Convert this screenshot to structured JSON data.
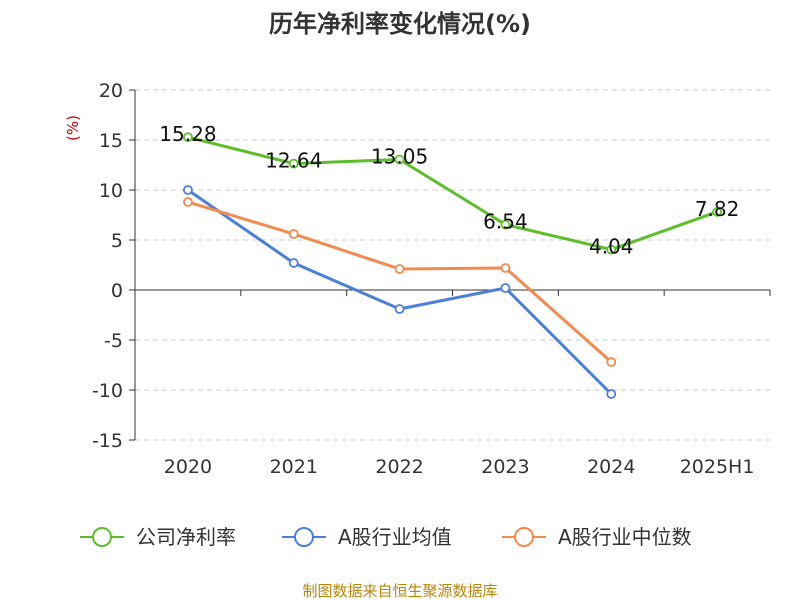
{
  "chart_data": {
    "type": "line",
    "title": "历年净利率变化情况(%)",
    "ylabel": "(%)",
    "xlabel": "",
    "ylim": [
      -15,
      20
    ],
    "yticks": [
      20,
      15,
      10,
      5,
      0,
      -5,
      -10,
      -15
    ],
    "categories": [
      "2020",
      "2021",
      "2022",
      "2023",
      "2024",
      "2025H1"
    ],
    "grid": true,
    "legend_position": "bottom",
    "series": [
      {
        "name": "公司净利率",
        "color": "#5cbf2a",
        "values": [
          15.28,
          12.64,
          13.05,
          6.54,
          4.04,
          7.82
        ],
        "labels": [
          "15.28",
          "12.64",
          "13.05",
          "6.54",
          "4.04",
          "7.82"
        ]
      },
      {
        "name": "A股行业均值",
        "color": "#4a7fdc",
        "values": [
          10.0,
          2.7,
          -1.9,
          0.2,
          -10.4,
          null
        ]
      },
      {
        "name": "A股行业中位数",
        "color": "#f5894e",
        "values": [
          8.8,
          5.6,
          2.1,
          2.2,
          -7.2,
          null
        ]
      }
    ],
    "source": "制图数据来自恒生聚源数据库"
  }
}
